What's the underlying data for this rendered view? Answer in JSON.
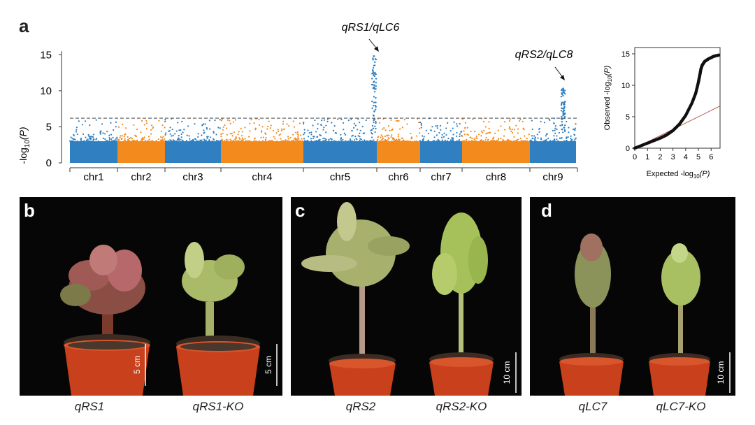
{
  "panels": {
    "a": "a",
    "b": "b",
    "c": "c",
    "d": "d"
  },
  "manhattan": {
    "ylabel_main": "-log",
    "ylabel_sub": "10",
    "ylabel_tail": "(P)",
    "yticks": [
      "0",
      "5",
      "10",
      "15"
    ],
    "chromosomes": [
      "chr1",
      "chr2",
      "chr3",
      "chr4",
      "chr5",
      "chr6",
      "chr7",
      "chr8",
      "chr9"
    ],
    "annotations": [
      "qRS1/qLC6",
      "qRS2/qLC8"
    ],
    "colors": {
      "blue": "#2f7fc1",
      "orange": "#f28a1e",
      "threshold": "#555555"
    }
  },
  "qq": {
    "xlabel_main": "Expected -log",
    "xlabel_sub": "10",
    "xlabel_tail": "(P)",
    "ylabel_main": "Observed -log",
    "ylabel_sub": "10",
    "ylabel_tail": "(P)",
    "xticks": [
      "0",
      "1",
      "2",
      "3",
      "4",
      "5",
      "6"
    ],
    "yticks": [
      "0",
      "5",
      "10",
      "15"
    ],
    "line_color": "#b5584a"
  },
  "photos": {
    "b": {
      "scale": [
        "5 cm",
        "5 cm"
      ],
      "captions": [
        "qRS1",
        "qRS1-KO"
      ]
    },
    "c": {
      "scale": [
        "10 cm"
      ],
      "captions": [
        "qRS2",
        "qRS2-KO"
      ]
    },
    "d": {
      "scale": [
        "10 cm"
      ],
      "captions": [
        "qLC7",
        "qLC7-KO"
      ]
    }
  },
  "chart_data": [
    {
      "type": "scatter",
      "ylim": [
        0,
        16
      ],
      "threshold": 6.2,
      "categories": [
        "chr1",
        "chr2",
        "chr3",
        "chr4",
        "chr5",
        "chr6",
        "chr7",
        "chr8",
        "chr9"
      ],
      "peaks": [
        {
          "chromosome": "chr5",
          "value": 14.8,
          "label": "qRS1/qLC6"
        },
        {
          "chromosome": "chr9",
          "value": 10.3,
          "label": "qRS2/qLC8"
        }
      ]
    },
    {
      "type": "scatter",
      "xlim": [
        0,
        6.7
      ],
      "ylim": [
        0,
        16
      ],
      "points": [
        [
          0,
          0
        ],
        [
          1,
          0.8
        ],
        [
          2,
          1.6
        ],
        [
          2.5,
          2.1
        ],
        [
          3,
          2.8
        ],
        [
          3.5,
          3.8
        ],
        [
          4,
          5.2
        ],
        [
          4.5,
          7.2
        ],
        [
          4.8,
          8.8
        ],
        [
          5,
          10.5
        ],
        [
          5.1,
          11.5
        ],
        [
          5.2,
          12.6
        ],
        [
          5.3,
          13.2
        ],
        [
          5.5,
          13.8
        ],
        [
          5.8,
          14.2
        ],
        [
          6.2,
          14.6
        ],
        [
          6.6,
          14.8
        ]
      ]
    }
  ]
}
